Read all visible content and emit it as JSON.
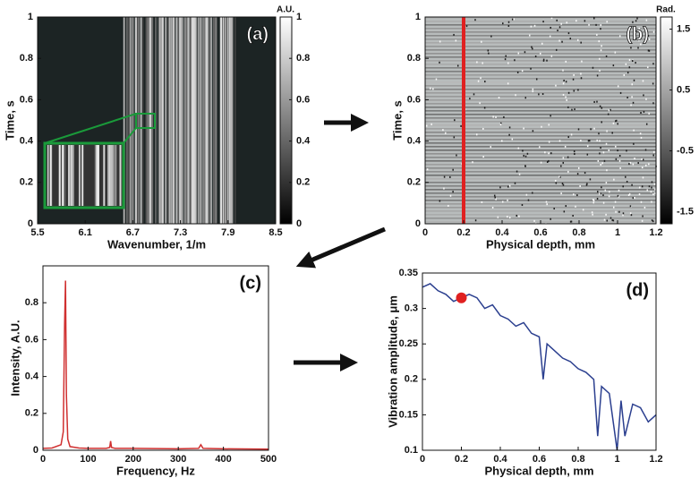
{
  "chart_data": [
    {
      "type": "heatmap",
      "panel_label": "(a)",
      "xlabel": "Wavenumber, 1/m",
      "ylabel": "Time, s",
      "xlim": [
        5.5,
        8.5
      ],
      "xticks": [
        5.5,
        6.1,
        6.7,
        7.3,
        7.9,
        8.5
      ],
      "ylim": [
        0,
        1
      ],
      "yticks": [
        0,
        0.2,
        0.4,
        0.6,
        0.8,
        1
      ],
      "colorbar": {
        "label": "A.U.",
        "lim": [
          0,
          1
        ],
        "ticks": [
          0,
          0.2,
          0.4,
          0.6,
          0.8,
          1
        ]
      }
    },
    {
      "type": "heatmap",
      "panel_label": "(b)",
      "xlabel": "Physical depth, mm",
      "ylabel": "Time, s",
      "xlim": [
        0,
        1.2
      ],
      "xticks": [
        0,
        0.2,
        0.4,
        0.6,
        0.8,
        1,
        1.2
      ],
      "ylim": [
        0,
        1
      ],
      "yticks": [
        0,
        0.2,
        0.4,
        0.6,
        0.8,
        1
      ],
      "highlight_x": 0.2,
      "highlight_color": "#e02020",
      "colorbar": {
        "label": "Rad.",
        "lim": [
          -1.7,
          1.7
        ],
        "ticks": [
          1.5,
          0.5,
          -0.5,
          -1.5
        ]
      }
    },
    {
      "type": "line",
      "panel_label": "(c)",
      "xlabel": "Frequency, Hz",
      "ylabel": "Intensity, A.U.",
      "xlim": [
        0,
        500
      ],
      "xticks": [
        0,
        100,
        200,
        300,
        400,
        500
      ],
      "ylim": [
        0,
        1
      ],
      "yticks": [
        0,
        0.2,
        0.4,
        0.6,
        0.8
      ],
      "color": "#d03030",
      "x": [
        0,
        20,
        40,
        45,
        48,
        50,
        52,
        55,
        60,
        80,
        100,
        140,
        148,
        150,
        152,
        160,
        200,
        300,
        345,
        350,
        355,
        400,
        500
      ],
      "values": [
        0.01,
        0.012,
        0.03,
        0.1,
        0.69,
        0.92,
        0.3,
        0.06,
        0.02,
        0.012,
        0.01,
        0.01,
        0.015,
        0.05,
        0.015,
        0.01,
        0.01,
        0.008,
        0.01,
        0.03,
        0.01,
        0.008,
        0.006
      ]
    },
    {
      "type": "line",
      "panel_label": "(d)",
      "xlabel": "Physical depth, mm",
      "ylabel": "Vibration amplitude, μm",
      "xlim": [
        0,
        1.2
      ],
      "xticks": [
        0,
        0.2,
        0.4,
        0.6,
        0.8,
        1,
        1.2
      ],
      "ylim": [
        0.1,
        0.35
      ],
      "yticks": [
        0.1,
        0.15,
        0.2,
        0.25,
        0.3,
        0.35
      ],
      "color": "#2b3f8f",
      "x": [
        0,
        0.04,
        0.08,
        0.12,
        0.16,
        0.2,
        0.24,
        0.28,
        0.32,
        0.36,
        0.4,
        0.44,
        0.48,
        0.52,
        0.56,
        0.6,
        0.62,
        0.64,
        0.68,
        0.72,
        0.76,
        0.8,
        0.84,
        0.88,
        0.9,
        0.92,
        0.96,
        1,
        1.02,
        1.04,
        1.08,
        1.12,
        1.16,
        1.2
      ],
      "values": [
        0.33,
        0.335,
        0.325,
        0.32,
        0.31,
        0.315,
        0.32,
        0.315,
        0.3,
        0.305,
        0.29,
        0.285,
        0.275,
        0.28,
        0.265,
        0.26,
        0.2,
        0.25,
        0.24,
        0.23,
        0.225,
        0.215,
        0.21,
        0.2,
        0.12,
        0.19,
        0.18,
        0.1,
        0.17,
        0.12,
        0.165,
        0.16,
        0.14,
        0.15
      ],
      "marker": {
        "x": 0.2,
        "y": 0.315,
        "color": "#e02020"
      }
    }
  ]
}
